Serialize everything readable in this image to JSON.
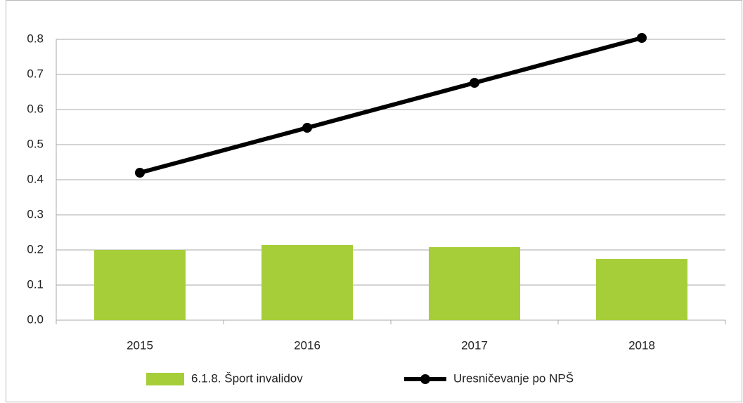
{
  "chart_data": {
    "type": "bar",
    "categories": [
      "2015",
      "2016",
      "2017",
      "2018"
    ],
    "series": [
      {
        "name": "6.1.8. Šport invalidov",
        "type": "bar",
        "color": "#a6ce39",
        "values": [
          0.2,
          0.214,
          0.208,
          0.174
        ]
      },
      {
        "name": "Uresničevanje po NPŠ",
        "type": "line",
        "color": "#000000",
        "values": [
          0.42,
          0.548,
          0.676,
          0.804
        ]
      }
    ],
    "ylim": [
      0,
      0.8
    ],
    "yticks": [
      {
        "value": 0,
        "label": "0.0"
      },
      0.1,
      0.2,
      0.3,
      0.4,
      0.5,
      0.6,
      0.7,
      0.8
    ],
    "grid": true,
    "legend": "bottom"
  }
}
